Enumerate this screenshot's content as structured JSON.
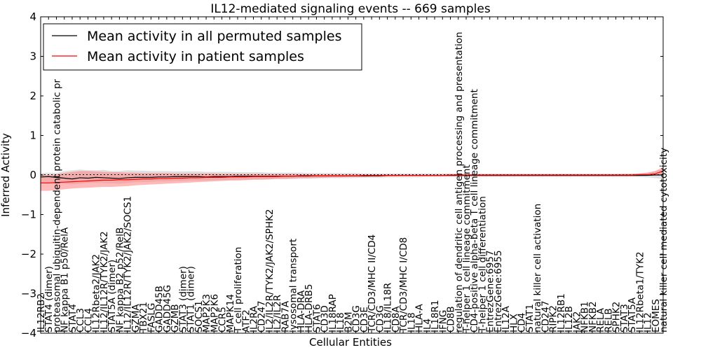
{
  "chart_data": {
    "type": "line",
    "title": "IL12-mediated signaling events -- 669 samples",
    "xlabel": "Cellular Entities",
    "ylabel": "Inferred Activity",
    "ylim": [
      -4,
      4
    ],
    "yticks": [
      -4,
      -3,
      -2,
      -1,
      0,
      1,
      2,
      3,
      4
    ],
    "legend": {
      "placement": "top-left",
      "entries": [
        {
          "label": "Mean activity in all permuted samples",
          "color": "#000000"
        },
        {
          "label": "Mean activity in patient samples",
          "color": "#ff0000"
        }
      ]
    },
    "categories": [
      "IL12RB2",
      "STAT4 (dimer)",
      "proteasomal ubiquitin-dependent protein catabolic pr",
      "NF kappa B1 p50/RelA",
      "STAT4",
      "CCL3",
      "CCL4",
      "IL12Rbeta2/JAK2",
      "IL12/IL12R/TYK2/JAK2",
      "STAT5A (dimer)",
      "NF kappa B2 p52/RelB",
      "IL12/IL12R/TYK2/JAK2/SOCS1",
      "GZMA",
      "TBX21",
      "FASLG",
      "GADD45B",
      "GADD45G",
      "GZMB",
      "STAT3 (dimer)",
      "STAT1 (dimer)",
      "SOCS1",
      "MAP2K3",
      "MAP2K6",
      "CCR5",
      "MAPK14",
      "T cell proliferation",
      "ATF2",
      "IL2RA",
      "CD247",
      "IL2/IL2R/TYK2/JAK2/SPHK2",
      "IL2/IL2R",
      "RAB7A",
      "lysosomal transport",
      "HLA-DRA",
      "HLA-DRB5",
      "STAT6",
      "CD3D",
      "IL18RAP",
      "IL18",
      "B2M",
      "CD3G",
      "CD3E",
      "TCR/CD3/MHC II/CD4",
      "CD3G",
      "IL18/IL18R",
      "CD8A",
      "TCR/CD3/MHC I/CD8",
      "IL18",
      "HLA-A",
      "IL4",
      "IL18R1",
      "IFNG",
      "CD8B",
      "regulation of dendritic cell antigen processing and presentation",
      "T-helper 1 cell lineage commitment",
      "CD4-positive alpha-beta T cell lineage commitment",
      "T-helper 1 cell differentiation",
      "EntrezGene:6957",
      "EntrezGene:6955",
      "IL12A",
      "HLX",
      "CD4",
      "STAT1",
      "natural killer cell activation",
      "CD247",
      "RIPK2",
      "IL12RB1",
      "IL12B",
      "JAK2",
      "NFKB1",
      "NFKB2",
      "RELA",
      "RELB",
      "SPHK2",
      "STAT3",
      "STAT5A",
      "IL12Rbeta1/TYK2",
      "IL12",
      "EOMES",
      "natural killer cell mediated cytotoxicity"
    ],
    "series": [
      {
        "name": "Mean activity in all permuted samples",
        "color": "#000000",
        "values": [
          -0.05,
          -0.04,
          -0.06,
          -0.08,
          -0.1,
          -0.07,
          -0.08,
          -0.06,
          -0.07,
          -0.08,
          -0.09,
          -0.07,
          -0.06,
          -0.06,
          -0.06,
          -0.05,
          -0.05,
          -0.04,
          -0.04,
          -0.04,
          -0.04,
          -0.05,
          -0.04,
          -0.04,
          -0.04,
          -0.03,
          -0.03,
          -0.03,
          -0.03,
          -0.03,
          -0.03,
          -0.03,
          -0.03,
          -0.02,
          -0.02,
          -0.02,
          -0.02,
          -0.02,
          -0.02,
          -0.02,
          -0.02,
          -0.02,
          -0.02,
          -0.02,
          -0.01,
          -0.01,
          -0.01,
          -0.01,
          -0.01,
          -0.01,
          -0.01,
          -0.01,
          -0.01,
          -0.01,
          -0.01,
          -0.01,
          -0.01,
          -0.01,
          -0.01,
          -0.01,
          -0.01,
          -0.01,
          -0.01,
          -0.01,
          -0.01,
          -0.01,
          -0.01,
          -0.01,
          -0.01,
          -0.01,
          -0.01,
          -0.01,
          -0.01,
          -0.01,
          -0.01,
          -0.01,
          -0.01,
          -0.01,
          0.0,
          0.0
        ],
        "band_low": [
          -0.2,
          -0.2,
          -0.22,
          -0.22,
          -0.24,
          -0.22,
          -0.2,
          -0.2,
          -0.2,
          -0.21,
          -0.22,
          -0.2,
          -0.18,
          -0.18,
          -0.17,
          -0.16,
          -0.16,
          -0.15,
          -0.15,
          -0.14,
          -0.14,
          -0.14,
          -0.13,
          -0.13,
          -0.13,
          -0.12,
          -0.12,
          -0.11,
          -0.11,
          -0.11,
          -0.1,
          -0.1,
          -0.1,
          -0.09,
          -0.09,
          -0.09,
          -0.08,
          -0.08,
          -0.08,
          -0.08,
          -0.07,
          -0.07,
          -0.07,
          -0.07,
          -0.06,
          -0.06,
          -0.06,
          -0.06,
          -0.06,
          -0.05,
          -0.05,
          -0.05,
          -0.05,
          -0.05,
          -0.05,
          -0.05,
          -0.05,
          -0.05,
          -0.05,
          -0.05,
          -0.05,
          -0.05,
          -0.05,
          -0.05,
          -0.05,
          -0.05,
          -0.05,
          -0.05,
          -0.05,
          -0.05,
          -0.05,
          -0.05,
          -0.05,
          -0.05,
          -0.05,
          -0.05,
          -0.05,
          -0.06,
          -0.08,
          -0.1
        ],
        "band_high": [
          0.05,
          0.06,
          0.05,
          0.1,
          0.12,
          0.14,
          0.12,
          0.12,
          0.13,
          0.1,
          0.1,
          0.12,
          0.11,
          0.11,
          0.1,
          0.1,
          0.1,
          0.09,
          0.09,
          0.09,
          0.09,
          0.08,
          0.08,
          0.08,
          0.08,
          0.07,
          0.07,
          0.07,
          0.07,
          0.06,
          0.06,
          0.06,
          0.06,
          0.06,
          0.05,
          0.05,
          0.05,
          0.05,
          0.05,
          0.05,
          0.05,
          0.04,
          0.04,
          0.04,
          0.04,
          0.04,
          0.04,
          0.04,
          0.04,
          0.04,
          0.04,
          0.04,
          0.04,
          0.03,
          0.03,
          0.03,
          0.03,
          0.03,
          0.03,
          0.03,
          0.03,
          0.03,
          0.03,
          0.03,
          0.03,
          0.03,
          0.03,
          0.03,
          0.03,
          0.03,
          0.03,
          0.03,
          0.03,
          0.03,
          0.04,
          0.04,
          0.04,
          0.06,
          0.1,
          0.14
        ]
      },
      {
        "name": "Mean activity in patient samples",
        "color": "#ff0000",
        "values": [
          -0.2,
          -0.2,
          -0.19,
          -0.18,
          -0.17,
          -0.16,
          -0.15,
          -0.14,
          -0.13,
          -0.13,
          -0.12,
          -0.12,
          -0.11,
          -0.1,
          -0.1,
          -0.09,
          -0.09,
          -0.08,
          -0.08,
          -0.07,
          -0.07,
          -0.06,
          -0.06,
          -0.06,
          -0.05,
          -0.05,
          -0.05,
          -0.04,
          -0.04,
          -0.04,
          -0.04,
          -0.03,
          -0.03,
          -0.03,
          -0.03,
          -0.02,
          -0.02,
          -0.02,
          -0.02,
          -0.02,
          -0.02,
          -0.01,
          -0.01,
          -0.01,
          -0.01,
          -0.01,
          -0.01,
          -0.01,
          -0.01,
          -0.01,
          -0.01,
          -0.01,
          0.0,
          0.0,
          0.0,
          0.0,
          0.0,
          0.0,
          0.0,
          0.0,
          0.0,
          0.0,
          0.0,
          0.0,
          0.0,
          0.0,
          0.0,
          0.0,
          0.0,
          0.0,
          0.0,
          0.0,
          0.0,
          0.0,
          0.0,
          0.0,
          0.01,
          0.01,
          0.03,
          0.1
        ],
        "band_low": [
          -0.4,
          -0.4,
          -0.38,
          -0.36,
          -0.34,
          -0.33,
          -0.32,
          -0.31,
          -0.3,
          -0.3,
          -0.29,
          -0.28,
          -0.26,
          -0.25,
          -0.24,
          -0.23,
          -0.22,
          -0.21,
          -0.2,
          -0.19,
          -0.18,
          -0.17,
          -0.16,
          -0.15,
          -0.14,
          -0.14,
          -0.13,
          -0.12,
          -0.12,
          -0.11,
          -0.1,
          -0.1,
          -0.09,
          -0.08,
          -0.08,
          -0.07,
          -0.07,
          -0.06,
          -0.06,
          -0.05,
          -0.05,
          -0.05,
          -0.04,
          -0.04,
          -0.04,
          -0.04,
          -0.03,
          -0.03,
          -0.03,
          -0.03,
          -0.03,
          -0.03,
          -0.03,
          -0.03,
          -0.03,
          -0.03,
          -0.03,
          -0.03,
          -0.03,
          -0.03,
          -0.03,
          -0.03,
          -0.03,
          -0.03,
          -0.03,
          -0.03,
          -0.03,
          -0.03,
          -0.03,
          -0.03,
          -0.03,
          -0.03,
          -0.03,
          -0.03,
          -0.03,
          -0.03,
          -0.03,
          -0.02,
          0.0,
          0.02
        ],
        "band_high": [
          0.0,
          0.0,
          0.02,
          0.05,
          0.08,
          0.1,
          0.1,
          0.09,
          0.08,
          0.07,
          0.07,
          0.06,
          0.06,
          0.05,
          0.05,
          0.05,
          0.05,
          0.04,
          0.04,
          0.04,
          0.04,
          0.04,
          0.04,
          0.03,
          0.03,
          0.03,
          0.03,
          0.03,
          0.03,
          0.03,
          0.03,
          0.03,
          0.03,
          0.02,
          0.02,
          0.02,
          0.02,
          0.02,
          0.02,
          0.02,
          0.02,
          0.02,
          0.02,
          0.02,
          0.02,
          0.02,
          0.02,
          0.02,
          0.02,
          0.02,
          0.02,
          0.02,
          0.02,
          0.02,
          0.02,
          0.02,
          0.02,
          0.02,
          0.02,
          0.02,
          0.02,
          0.02,
          0.02,
          0.02,
          0.02,
          0.02,
          0.02,
          0.02,
          0.02,
          0.02,
          0.02,
          0.02,
          0.02,
          0.02,
          0.02,
          0.02,
          0.04,
          0.06,
          0.1,
          0.2
        ]
      }
    ]
  }
}
